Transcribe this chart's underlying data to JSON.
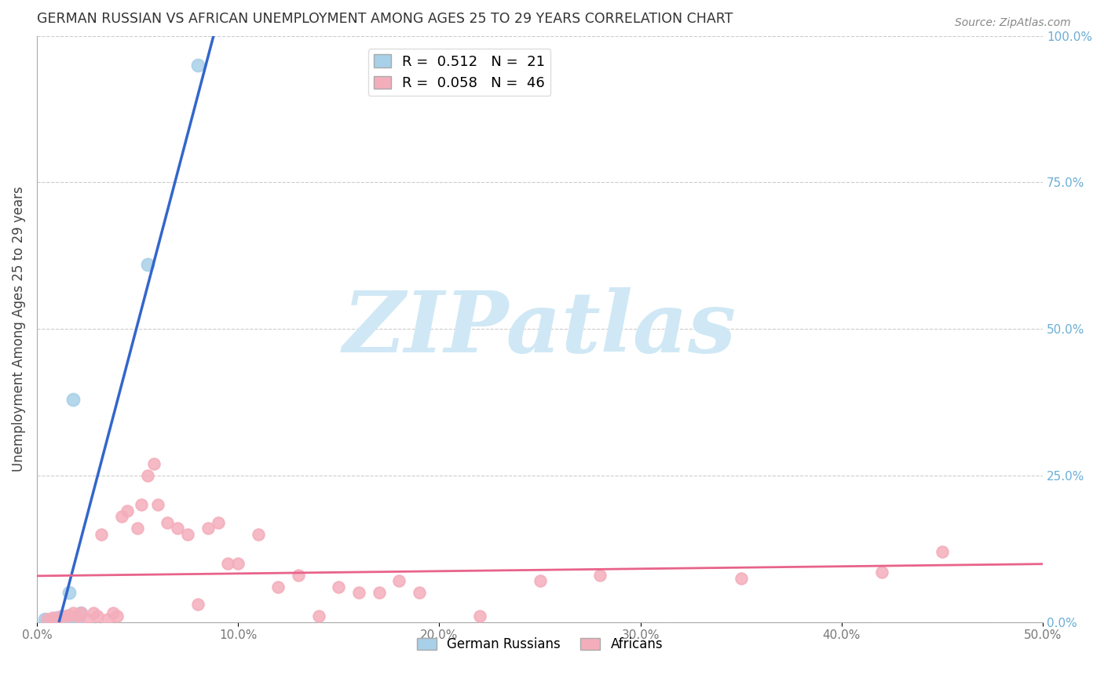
{
  "title": "GERMAN RUSSIAN VS AFRICAN UNEMPLOYMENT AMONG AGES 25 TO 29 YEARS CORRELATION CHART",
  "source": "Source: ZipAtlas.com",
  "ylabel": "Unemployment Among Ages 25 to 29 years",
  "xlim": [
    0.0,
    0.5
  ],
  "ylim": [
    0.0,
    1.0
  ],
  "xticks": [
    0.0,
    0.1,
    0.2,
    0.3,
    0.4,
    0.5
  ],
  "yticks": [
    0.0,
    0.25,
    0.5,
    0.75,
    1.0
  ],
  "xtick_labels": [
    "0.0%",
    "10.0%",
    "20.0%",
    "30.0%",
    "40.0%",
    "50.0%"
  ],
  "ytick_labels": [
    "0.0%",
    "25.0%",
    "50.0%",
    "75.0%",
    "100.0%"
  ],
  "gr_color": "#A8D0E8",
  "af_color": "#F4AEBB",
  "gr_line_color": "#3366CC",
  "af_line_color": "#E8638A",
  "R_gr": 0.512,
  "N_gr": 21,
  "R_af": 0.058,
  "N_af": 46,
  "gr_x": [
    0.004,
    0.005,
    0.007,
    0.008,
    0.009,
    0.01,
    0.01,
    0.012,
    0.013,
    0.015,
    0.015,
    0.016,
    0.016,
    0.017,
    0.018,
    0.019,
    0.02,
    0.021,
    0.022,
    0.055,
    0.08
  ],
  "gr_y": [
    0.005,
    0.003,
    0.004,
    0.003,
    0.005,
    0.003,
    0.008,
    0.004,
    0.005,
    0.003,
    0.01,
    0.005,
    0.05,
    0.004,
    0.38,
    0.004,
    0.005,
    0.01,
    0.015,
    0.61,
    0.95
  ],
  "af_x": [
    0.005,
    0.008,
    0.01,
    0.012,
    0.015,
    0.016,
    0.018,
    0.02,
    0.022,
    0.025,
    0.028,
    0.03,
    0.032,
    0.035,
    0.038,
    0.04,
    0.042,
    0.045,
    0.05,
    0.052,
    0.055,
    0.058,
    0.06,
    0.065,
    0.07,
    0.075,
    0.08,
    0.085,
    0.09,
    0.095,
    0.1,
    0.11,
    0.12,
    0.13,
    0.14,
    0.15,
    0.16,
    0.17,
    0.18,
    0.19,
    0.22,
    0.25,
    0.28,
    0.35,
    0.42,
    0.45
  ],
  "af_y": [
    0.005,
    0.008,
    0.006,
    0.01,
    0.01,
    0.012,
    0.015,
    0.01,
    0.015,
    0.005,
    0.015,
    0.01,
    0.15,
    0.005,
    0.015,
    0.01,
    0.18,
    0.19,
    0.16,
    0.2,
    0.25,
    0.27,
    0.2,
    0.17,
    0.16,
    0.15,
    0.03,
    0.16,
    0.17,
    0.1,
    0.1,
    0.15,
    0.06,
    0.08,
    0.01,
    0.06,
    0.05,
    0.05,
    0.07,
    0.05,
    0.01,
    0.07,
    0.08,
    0.075,
    0.085,
    0.12
  ],
  "watermark_text": "ZIPatlas",
  "watermark_color": "#D0E8F5",
  "bg_color": "#FFFFFF"
}
